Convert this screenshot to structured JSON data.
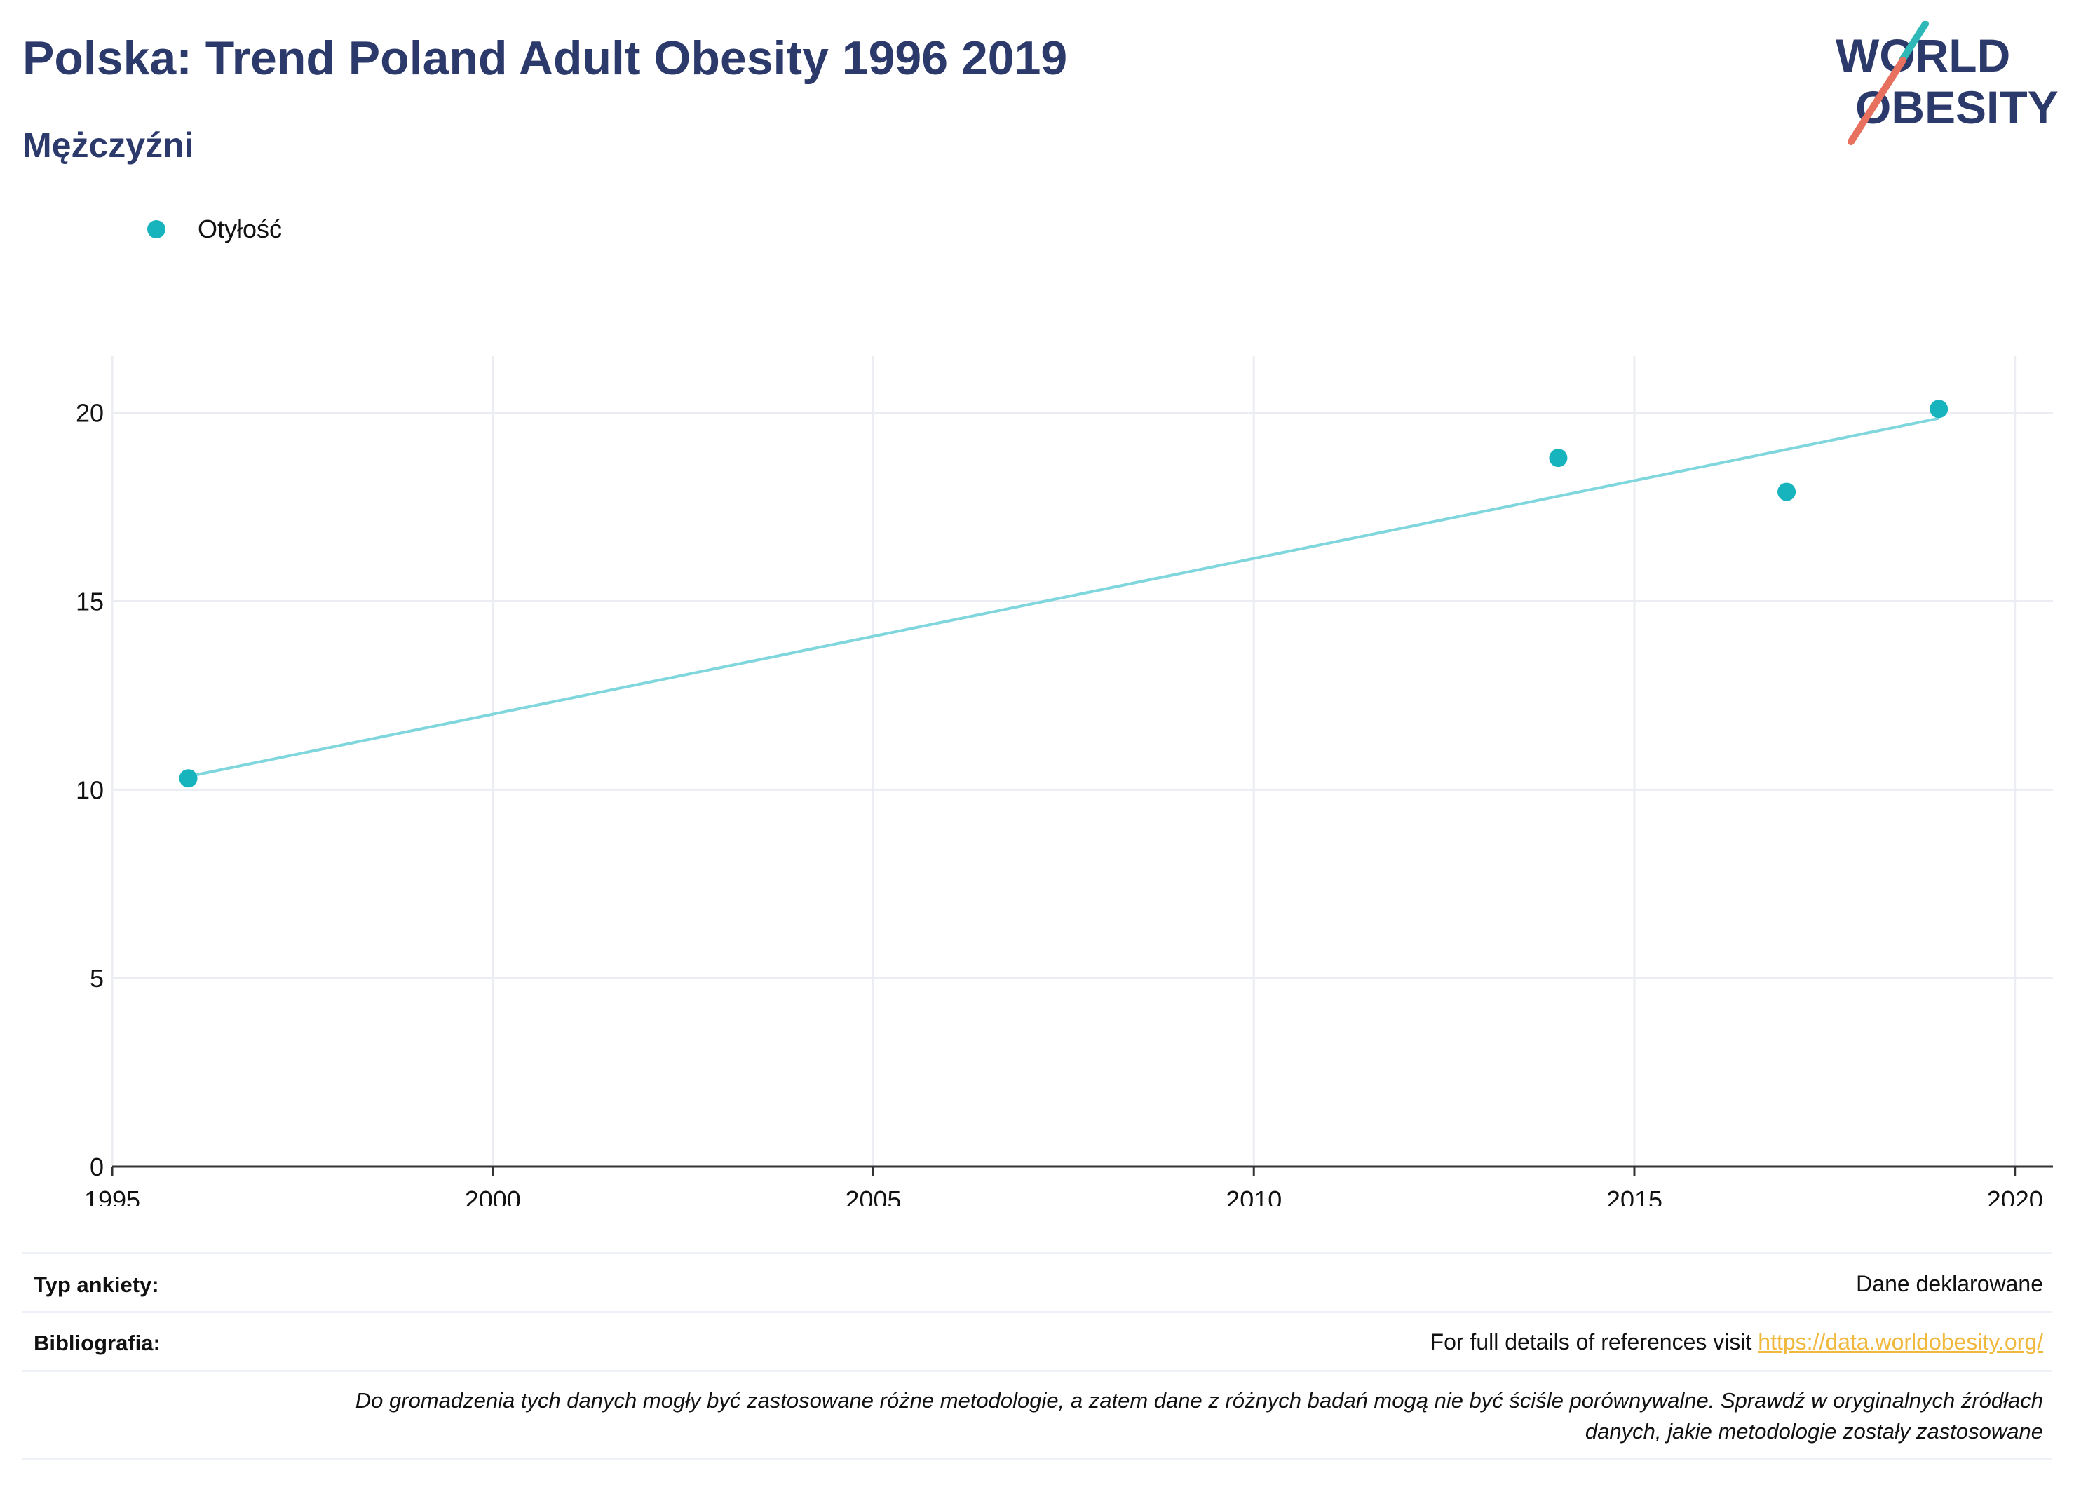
{
  "header": {
    "title": "Polska: Trend Poland Adult Obesity 1996 2019",
    "subtitle": "Mężczyźni"
  },
  "logo": {
    "line1": "WORLD",
    "line2": "OBESITY",
    "accent_teal": "#2fb8b8",
    "accent_coral": "#e8705f",
    "text_color": "#2c3a6b"
  },
  "legend": {
    "label": "Otyłość",
    "color": "#18b4bd"
  },
  "chart_data": {
    "type": "scatter",
    "series": [
      {
        "name": "Otyłość",
        "x": [
          1996,
          2014,
          2017,
          2019
        ],
        "y": [
          10.3,
          18.8,
          17.9,
          20.1
        ],
        "color": "#18b4bd"
      }
    ],
    "trendline": {
      "x": [
        1996,
        2019
      ],
      "y": [
        10.35,
        19.85
      ],
      "color": "#7fd6dc"
    },
    "xlim": [
      1995,
      2020.5
    ],
    "ylim": [
      0,
      21.5
    ],
    "xticks": [
      1995,
      2000,
      2005,
      2010,
      2015,
      2020
    ],
    "yticks": [
      0,
      5,
      10,
      15,
      20
    ],
    "grid": true,
    "legend_position": "top-left"
  },
  "footer": {
    "survey_type_label": "Typ ankiety:",
    "survey_type_value": "Dane deklarowane",
    "bibliography_label": "Bibliografia:",
    "bibliography_text": "For full details of references visit ",
    "bibliography_link": "https://data.worldobesity.org/",
    "note_line1": "Do gromadzenia tych danych mogły być zastosowane różne metodologie, a zatem dane z różnych badań mogą nie być ściśle porównywalne. Sprawdź w oryginalnych źródłach",
    "note_line2": "danych, jakie metodologie zostały zastosowane"
  }
}
